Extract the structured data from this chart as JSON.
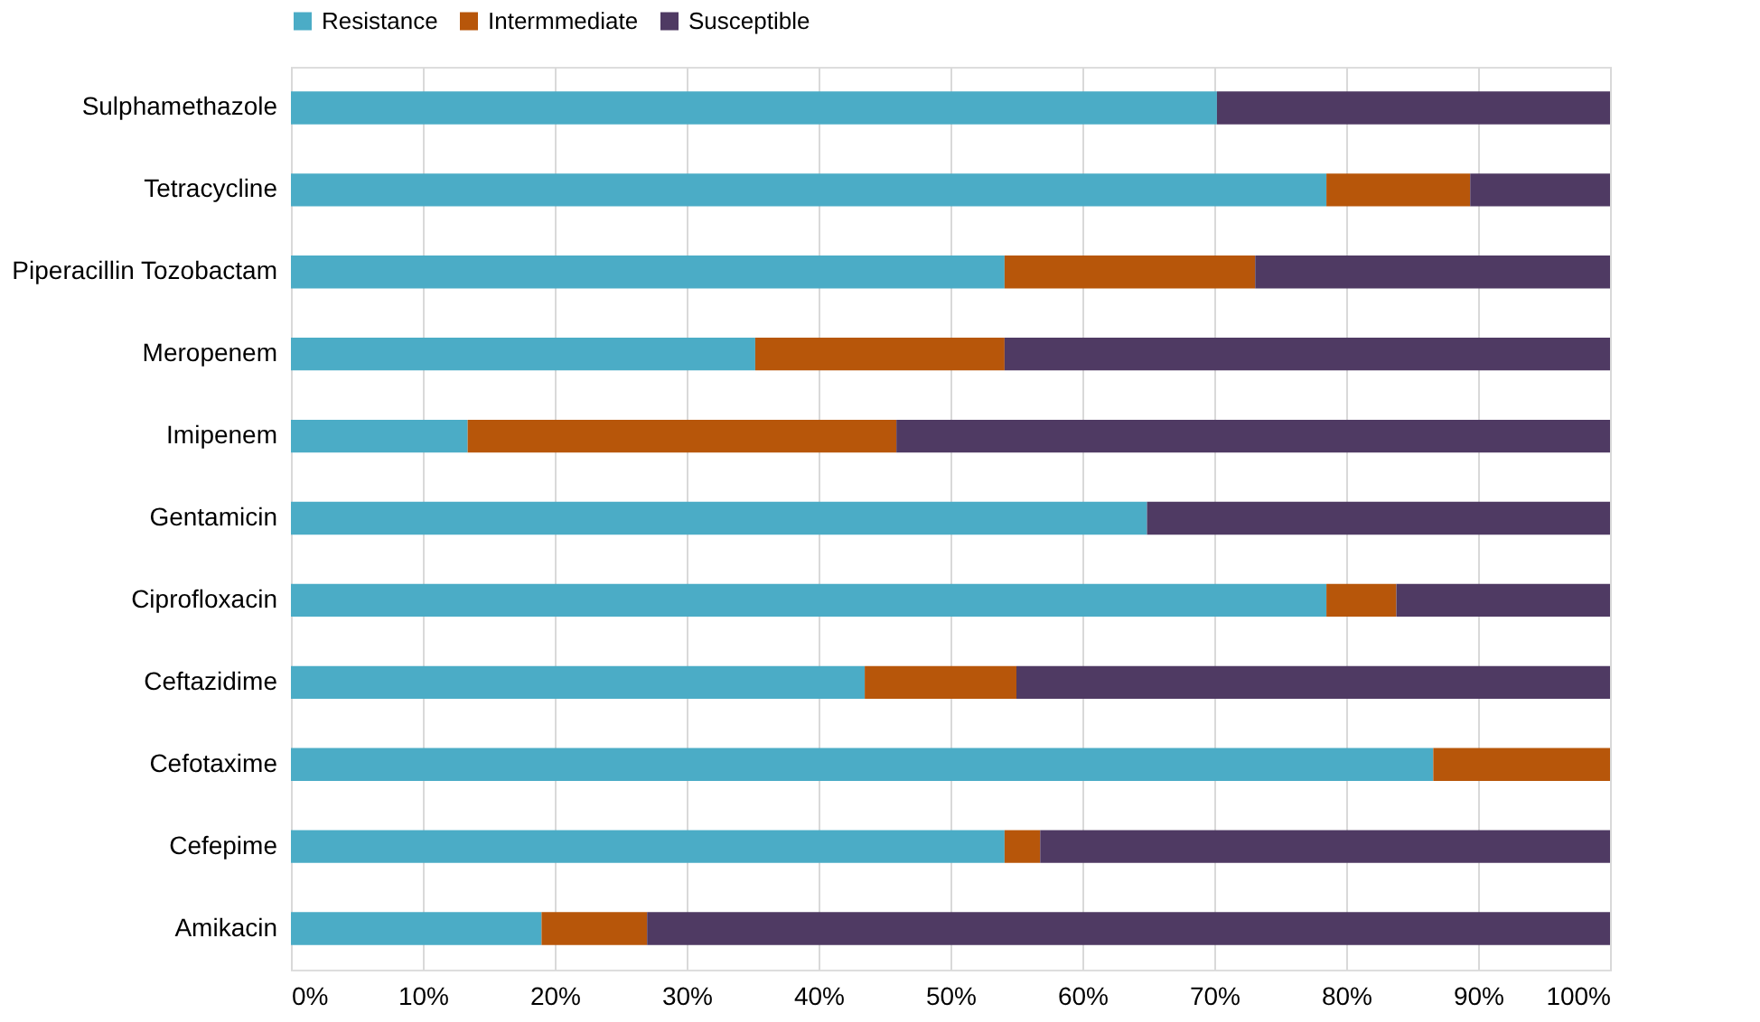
{
  "chart_data": {
    "type": "bar",
    "orientation": "horizontal",
    "stacked": true,
    "categories": [
      "Sulphamethazole",
      "Tetracycline",
      "Piperacillin Tozobactam",
      "Meropenem",
      "Imipenem",
      "Gentamicin",
      "Ciprofloxacin",
      "Ceftazidime",
      "Cefotaxime",
      "Cefepime",
      "Amikacin"
    ],
    "series": [
      {
        "name": "Resistance",
        "color": "#4bacc6",
        "values": [
          70.2,
          78.5,
          54.1,
          35.2,
          13.4,
          64.9,
          78.5,
          43.5,
          86.6,
          54.1,
          19.0
        ]
      },
      {
        "name": "Intermmediate",
        "color": "#b7560a",
        "values": [
          0,
          10.9,
          19.0,
          18.9,
          32.5,
          0,
          5.3,
          11.5,
          13.4,
          2.7,
          8.0
        ]
      },
      {
        "name": "Susceptible",
        "color": "#4f3a63",
        "values": [
          29.8,
          10.6,
          26.9,
          45.9,
          54.1,
          35.1,
          16.2,
          45.0,
          0,
          43.2,
          73.0
        ]
      }
    ],
    "xlim": [
      0,
      100
    ],
    "xticks": [
      {
        "value": 0,
        "label": "0%"
      },
      {
        "value": 10,
        "label": "10%"
      },
      {
        "value": 20,
        "label": "20%"
      },
      {
        "value": 30,
        "label": "30%"
      },
      {
        "value": 40,
        "label": "40%"
      },
      {
        "value": 50,
        "label": "50%"
      },
      {
        "value": 60,
        "label": "60%"
      },
      {
        "value": 70,
        "label": "70%"
      },
      {
        "value": 80,
        "label": "80%"
      },
      {
        "value": 90,
        "label": "90%"
      },
      {
        "value": 100,
        "label": "100%"
      }
    ],
    "grid": "x",
    "legend": "top"
  }
}
